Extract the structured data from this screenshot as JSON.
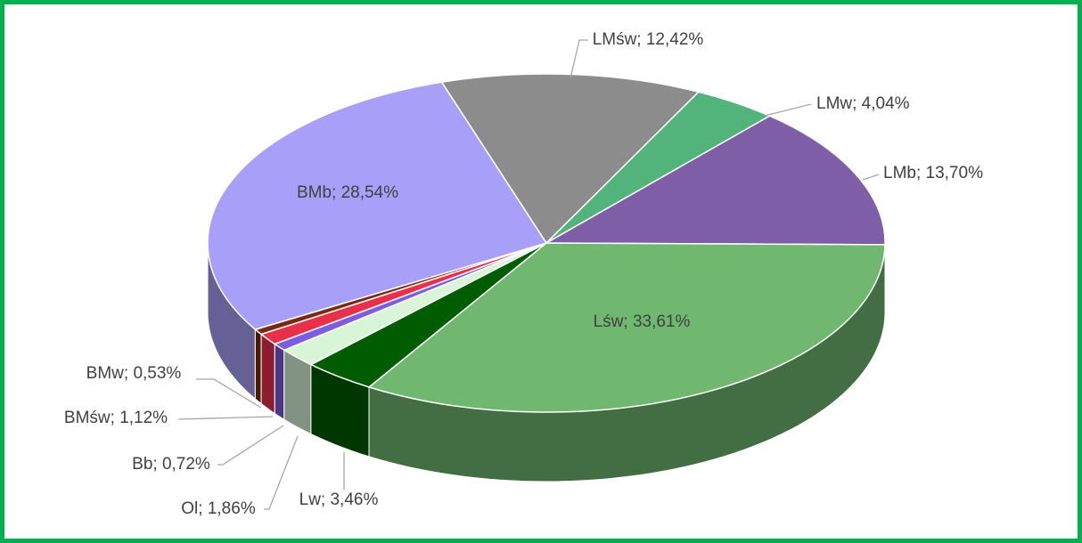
{
  "chart_data": {
    "type": "pie",
    "labels": [
      "LMśw; 12,42%",
      "LMw; 4,04%",
      "LMb; 13,70%",
      "Lśw; 33,61%",
      "Lw; 3,46%",
      "Ol; 1,86%",
      "Bb; 0,72%",
      "BMśw; 1,12%",
      "BMw; 0,53%",
      "BMb; 28,54%"
    ],
    "values": [
      12.42,
      4.04,
      13.7,
      33.61,
      3.46,
      1.86,
      0.72,
      1.12,
      0.53,
      28.54
    ],
    "colors": [
      "#8c8c8c",
      "#52b47a",
      "#7f5ea8",
      "#70b86f",
      "#005c00",
      "#d8f5d8",
      "#7c5ce0",
      "#e8304a",
      "#7a2a0e",
      "#a8a0f8"
    ]
  }
}
